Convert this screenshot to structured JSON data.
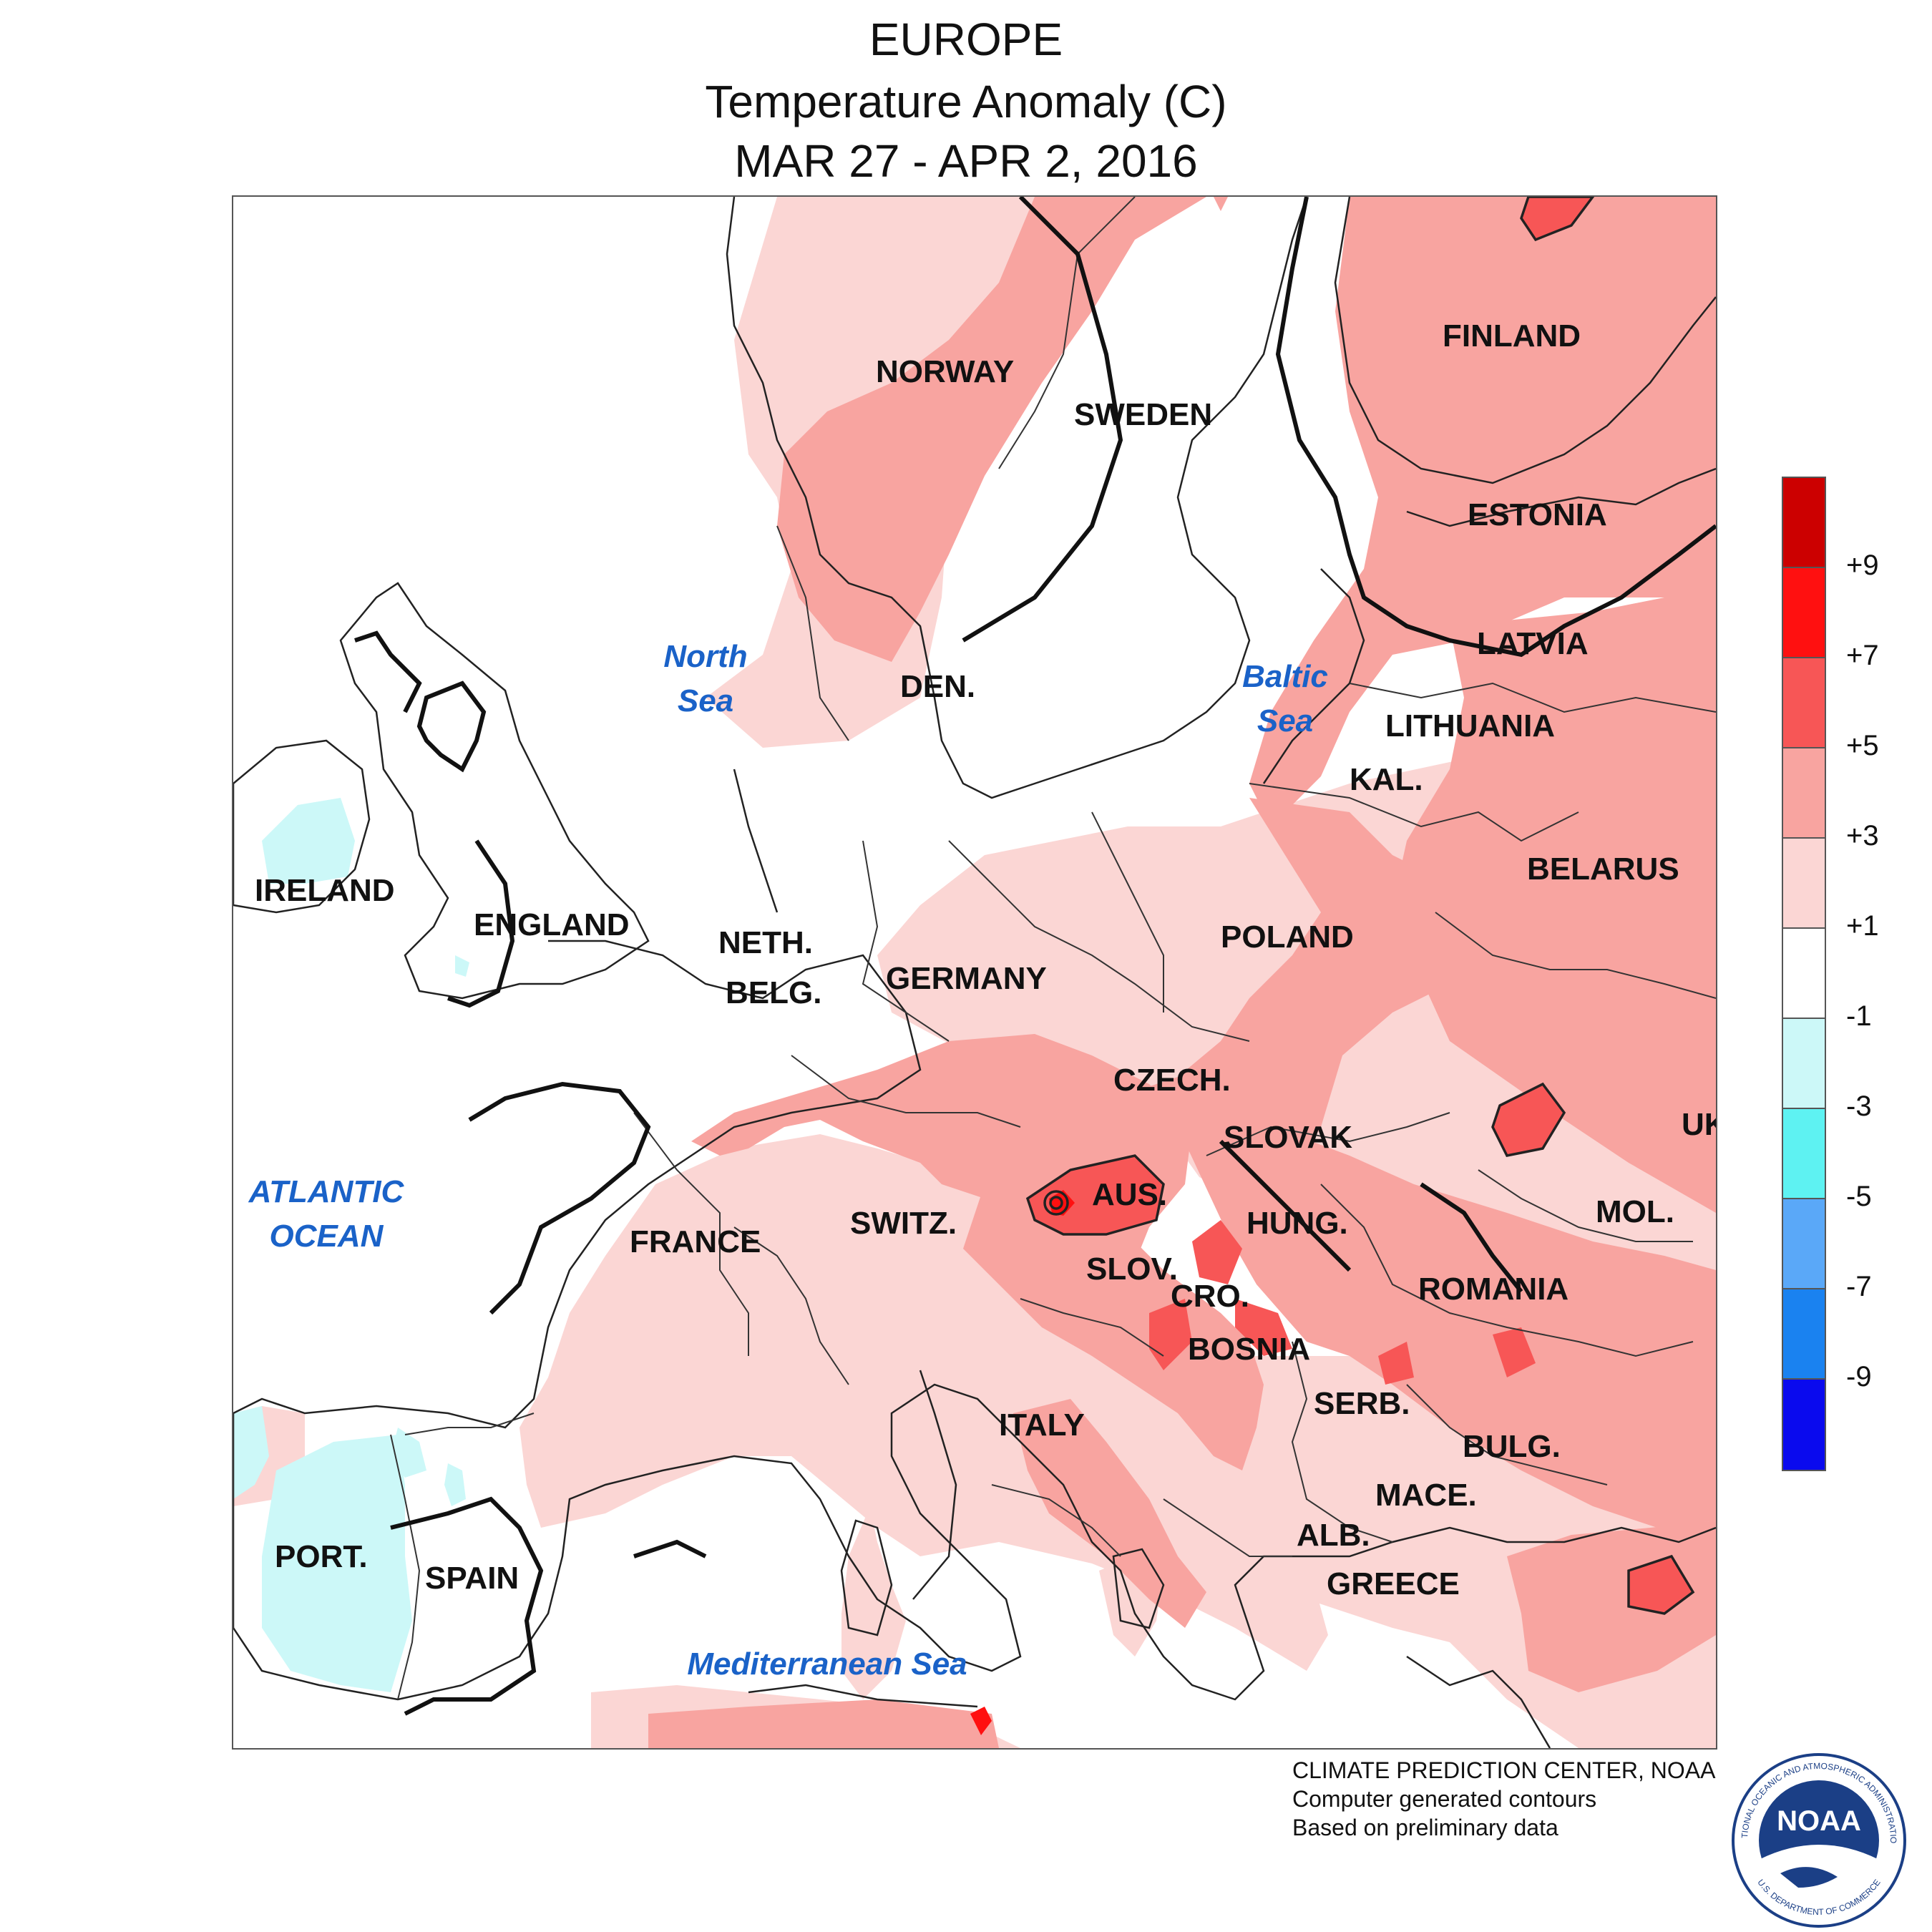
{
  "header": {
    "region": "EUROPE",
    "variable": "Temperature Anomaly (C)",
    "period": "MAR 27 - APR 2, 2016"
  },
  "map": {
    "countries": {
      "norway": "NORWAY",
      "sweden": "SWEDEN",
      "finland": "FINLAND",
      "estonia": "ESTONIA",
      "latvia": "LATVIA",
      "lithuania": "LITHUANIA",
      "kal": "KAL.",
      "belarus": "BELARUS",
      "poland": "POLAND",
      "den": "DEN.",
      "ireland": "IRELAND",
      "england": "ENGLAND",
      "neth": "NETH.",
      "belg": "BELG.",
      "germany": "GERMANY",
      "czech": "CZECH.",
      "slovak": "SLOVAK",
      "uk": "UK",
      "aus": "AUS.",
      "switz": "SWITZ.",
      "hung": "HUNG.",
      "mol": "MOL.",
      "france": "FRANCE",
      "slov": "SLOV.",
      "cro": "CRO.",
      "romania": "ROMANIA",
      "bosnia": "BOSNIA",
      "serb": "SERB.",
      "italy": "ITALY",
      "bulg": "BULG.",
      "mace": "MACE.",
      "alb": "ALB.",
      "greece": "GREECE",
      "port": "PORT.",
      "spain": "SPAIN"
    },
    "seas": {
      "north_sea": "North\nSea",
      "baltic_sea": "Baltic\nSea",
      "atlantic": "ATLANTIC\nOCEAN",
      "mediterranean": "Mediterranean Sea"
    }
  },
  "legend": {
    "ticks": [
      "+9",
      "+7",
      "+5",
      "+3",
      "+1",
      "-1",
      "-3",
      "-5",
      "-7",
      "-9"
    ],
    "bins": [
      {
        "range": "> +9",
        "color": "#cc0000"
      },
      {
        "range": "+7 to +9",
        "color": "#ff1010"
      },
      {
        "range": "+5 to +7",
        "color": "#f75656"
      },
      {
        "range": "+3 to +5",
        "color": "#f8a4a0"
      },
      {
        "range": "+1 to +3",
        "color": "#fbd6d4"
      },
      {
        "range": "-1 to +1",
        "color": "#ffffff"
      },
      {
        "range": "-3 to -1",
        "color": "#ccf8f8"
      },
      {
        "range": "-5 to -3",
        "color": "#5ef2f2"
      },
      {
        "range": "-7 to -5",
        "color": "#5aa8f8"
      },
      {
        "range": "-9 to -7",
        "color": "#1a82f0"
      },
      {
        "range": "< -9",
        "color": "#0a0aee"
      }
    ]
  },
  "credits": {
    "line1": "CLIMATE PREDICTION CENTER, NOAA",
    "line2": "Computer generated contours",
    "line3": "Based on preliminary data"
  },
  "logo": {
    "text": "NOAA",
    "ring_top": "NATIONAL OCEANIC AND ATMOSPHERIC ADMINISTRATION",
    "ring_bottom": "U.S. DEPARTMENT OF COMMERCE"
  }
}
